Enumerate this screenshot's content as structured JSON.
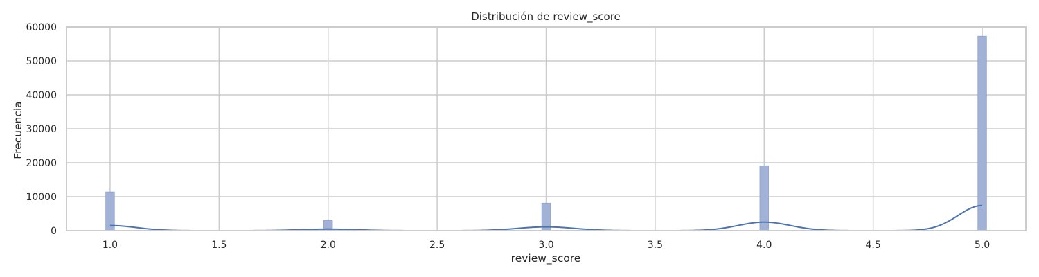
{
  "chart_data": {
    "type": "histogram",
    "title": "Distribución de review_score",
    "xlabel": "review_score",
    "ylabel": "Frecuencia",
    "xlim": [
      0.8,
      5.2
    ],
    "ylim": [
      0,
      60000
    ],
    "x_ticks": [
      "1.0",
      "1.5",
      "2.0",
      "2.5",
      "3.0",
      "3.5",
      "4.0",
      "4.5",
      "5.0"
    ],
    "x_tick_values": [
      1.0,
      1.5,
      2.0,
      2.5,
      3.0,
      3.5,
      4.0,
      4.5,
      5.0
    ],
    "y_ticks": [
      "0",
      "10000",
      "20000",
      "30000",
      "40000",
      "50000",
      "60000"
    ],
    "y_tick_values": [
      0,
      10000,
      20000,
      30000,
      40000,
      50000,
      60000
    ],
    "bin_width": 0.04,
    "bins": [
      {
        "x": 1.0,
        "value": 11400
      },
      {
        "x": 2.0,
        "value": 3000
      },
      {
        "x": 3.0,
        "value": 8100
      },
      {
        "x": 4.0,
        "value": 19100
      },
      {
        "x": 5.0,
        "value": 57300
      }
    ],
    "kde": {
      "peaks": [
        {
          "x": 1.0,
          "y": 1500,
          "sigma": 0.12
        },
        {
          "x": 2.0,
          "y": 450,
          "sigma": 0.13
        },
        {
          "x": 3.0,
          "y": 1100,
          "sigma": 0.13
        },
        {
          "x": 4.0,
          "y": 2500,
          "sigma": 0.12
        },
        {
          "x": 5.0,
          "y": 7400,
          "sigma": 0.11
        }
      ]
    },
    "grid": true,
    "colors": {
      "bar": "#a1b2d6",
      "bar_edge": "#8fa3cf",
      "kde": "#4c72b0",
      "grid": "#cccccc",
      "frame": "#cccccc"
    }
  }
}
